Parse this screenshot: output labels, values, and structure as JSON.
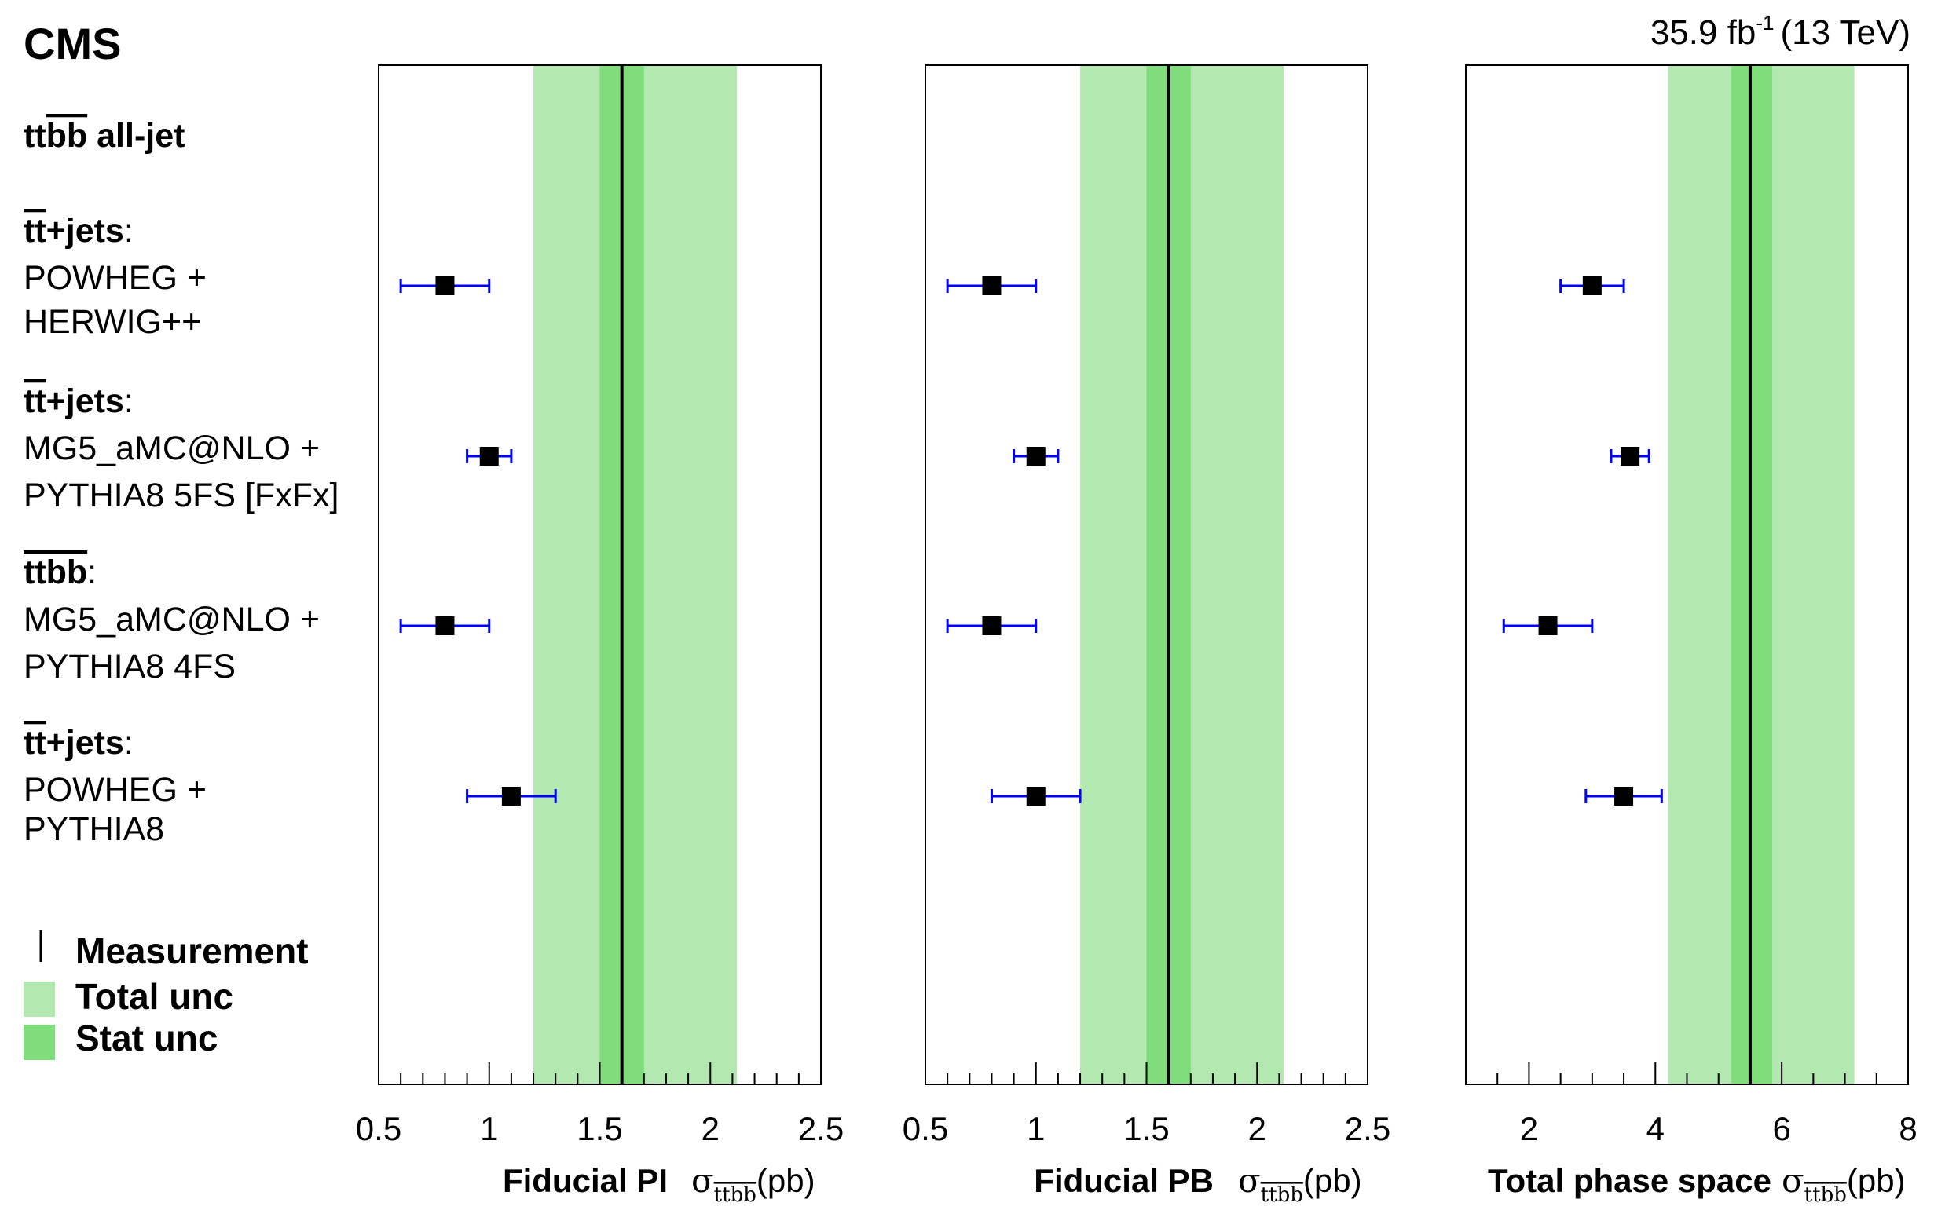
{
  "experiment": "CMS",
  "luminosity": {
    "value": "35.9 fb",
    "exponent": "-1",
    "energy": "(13 TeV)"
  },
  "process_label": {
    "prefix": "tt",
    "suffix": "bb",
    "rest": " all-jet"
  },
  "predictions": [
    {
      "process_bold": "tt",
      "process_bar": true,
      "process_rest": "+jets",
      "colon": ":",
      "lines": [
        "POWHEG +",
        "HERWIG++"
      ]
    },
    {
      "process_bold": "tt",
      "process_bar": true,
      "process_rest": "+jets",
      "colon": ":",
      "lines": [
        "MG5_aMC@NLO +",
        "PYTHIA8 5FS [FxFx]"
      ]
    },
    {
      "process_bold": "ttbb",
      "process_bar": true,
      "process_rest": "",
      "colon": ":",
      "lines": [
        "MG5_aMC@NLO +",
        "PYTHIA8 4FS"
      ]
    },
    {
      "process_bold": "tt",
      "process_bar": true,
      "process_rest": "+jets",
      "colon": ":",
      "lines": [
        "POWHEG +",
        "PYTHIA8"
      ]
    }
  ],
  "legend": {
    "measurement": "Measurement",
    "total": "Total unc",
    "stat": "Stat unc"
  },
  "colors": {
    "total_band": "#b3e8b0",
    "stat_band": "#7fdd7c",
    "measurement_line": "#000000",
    "error_bar": "#0000ff",
    "marker": "#000000"
  },
  "chart_data": [
    {
      "type": "scatter",
      "name": "fiducial-pi",
      "xlabel": "Fiducial PI",
      "xunit": "(pb)",
      "xlim": [
        0.5,
        2.5
      ],
      "major_ticks": [
        0.5,
        1,
        1.5,
        2,
        2.5
      ],
      "tick_labels": [
        "0.5",
        "1",
        "1.5",
        "2",
        "2.5"
      ],
      "minor_step": 0.1,
      "measurement": 1.6,
      "stat_band": [
        1.5,
        1.7
      ],
      "total_band": [
        1.2,
        2.12
      ],
      "points": [
        {
          "value": 0.8,
          "err_low": 0.2,
          "err_high": 0.2
        },
        {
          "value": 1.0,
          "err_low": 0.1,
          "err_high": 0.1
        },
        {
          "value": 0.8,
          "err_low": 0.2,
          "err_high": 0.2
        },
        {
          "value": 1.1,
          "err_low": 0.2,
          "err_high": 0.2
        }
      ]
    },
    {
      "type": "scatter",
      "name": "fiducial-pb",
      "xlabel": "Fiducial PB",
      "xunit": "(pb)",
      "xlim": [
        0.5,
        2.5
      ],
      "major_ticks": [
        0.5,
        1,
        1.5,
        2,
        2.5
      ],
      "tick_labels": [
        "0.5",
        "1",
        "1.5",
        "2",
        "2.5"
      ],
      "minor_step": 0.1,
      "measurement": 1.6,
      "stat_band": [
        1.5,
        1.7
      ],
      "total_band": [
        1.2,
        2.12
      ],
      "points": [
        {
          "value": 0.8,
          "err_low": 0.2,
          "err_high": 0.2
        },
        {
          "value": 1.0,
          "err_low": 0.1,
          "err_high": 0.1
        },
        {
          "value": 0.8,
          "err_low": 0.2,
          "err_high": 0.2
        },
        {
          "value": 1.0,
          "err_low": 0.2,
          "err_high": 0.2
        }
      ]
    },
    {
      "type": "scatter",
      "name": "total-phase-space",
      "xlabel": "Total phase space",
      "xunit": "(pb)",
      "xlim": [
        1,
        8
      ],
      "major_ticks": [
        2,
        4,
        6,
        8
      ],
      "tick_labels": [
        "2",
        "4",
        "6",
        "8"
      ],
      "minor_step": 0.5,
      "measurement": 5.5,
      "stat_band": [
        5.2,
        5.85
      ],
      "total_band": [
        4.2,
        7.15
      ],
      "points": [
        {
          "value": 3.0,
          "err_low": 0.5,
          "err_high": 0.5
        },
        {
          "value": 3.6,
          "err_low": 0.3,
          "err_high": 0.3
        },
        {
          "value": 2.3,
          "err_low": 0.7,
          "err_high": 0.7
        },
        {
          "value": 3.5,
          "err_low": 0.6,
          "err_high": 0.6
        }
      ]
    }
  ]
}
